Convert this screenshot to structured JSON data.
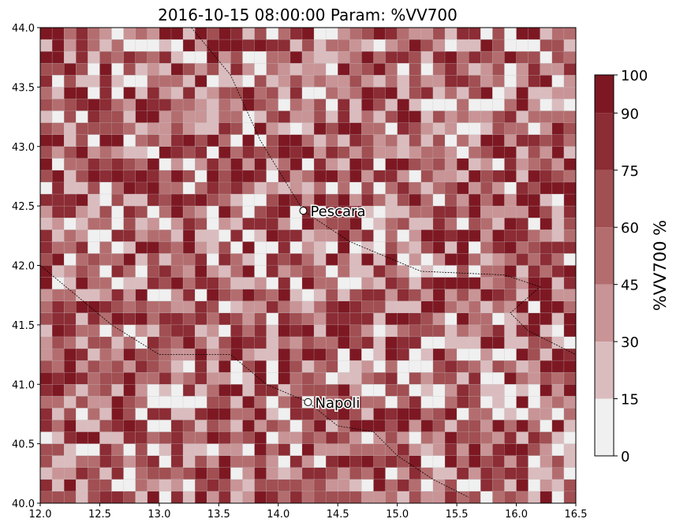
{
  "chart_data": {
    "type": "heatmap",
    "title": "2016-10-15 08:00:00 Param: %VV700",
    "xlim": [
      12.0,
      16.5
    ],
    "ylim": [
      40.0,
      44.0
    ],
    "x_ticks": [
      "12.0",
      "12.5",
      "13.0",
      "13.5",
      "14.0",
      "14.5",
      "15.0",
      "15.5",
      "16.0",
      "16.5"
    ],
    "y_ticks": [
      "40.0",
      "40.5",
      "41.0",
      "41.5",
      "42.0",
      "42.5",
      "43.0",
      "43.5",
      "44.0"
    ],
    "grid": true,
    "grid_cell_deg": 0.1,
    "colorbar": {
      "label": "%VV700  %",
      "levels": [
        0,
        15,
        30,
        45,
        60,
        75,
        90,
        100
      ],
      "tick_labels": [
        "0",
        "15",
        "30",
        "45",
        "60",
        "75",
        "90",
        "100"
      ],
      "colors": [
        "#f0f0f0",
        "#dbbcbe",
        "#c99496",
        "#b46d6f",
        "#a14f52",
        "#8c2c34",
        "#7d1822"
      ],
      "placement": "right"
    },
    "cities": [
      {
        "name": "Pescara",
        "lon": 14.21,
        "lat": 42.46
      },
      {
        "name": "Napoli",
        "lon": 14.25,
        "lat": 40.85
      }
    ],
    "coastline": [
      {
        "lon": 13.27,
        "lat": 44.0
      },
      {
        "lon": 13.6,
        "lat": 43.6
      },
      {
        "lon": 13.85,
        "lat": 43.05
      },
      {
        "lon": 14.21,
        "lat": 42.46
      },
      {
        "lon": 14.6,
        "lat": 42.2
      },
      {
        "lon": 15.2,
        "lat": 41.95
      },
      {
        "lon": 15.9,
        "lat": 41.92
      },
      {
        "lon": 16.2,
        "lat": 41.82
      },
      {
        "lon": 15.95,
        "lat": 41.6
      },
      {
        "lon": 16.1,
        "lat": 41.45
      },
      {
        "lon": 16.5,
        "lat": 41.25
      }
    ],
    "west_coast": [
      {
        "lon": 12.0,
        "lat": 42.0
      },
      {
        "lon": 12.3,
        "lat": 41.75
      },
      {
        "lon": 12.6,
        "lat": 41.5
      },
      {
        "lon": 13.0,
        "lat": 41.25
      },
      {
        "lon": 13.6,
        "lat": 41.25
      },
      {
        "lon": 13.9,
        "lat": 41.0
      },
      {
        "lon": 14.25,
        "lat": 40.85
      },
      {
        "lon": 14.5,
        "lat": 40.65
      },
      {
        "lon": 14.8,
        "lat": 40.6
      },
      {
        "lon": 15.0,
        "lat": 40.4
      },
      {
        "lon": 15.3,
        "lat": 40.2
      },
      {
        "lon": 15.6,
        "lat": 40.05
      }
    ]
  }
}
